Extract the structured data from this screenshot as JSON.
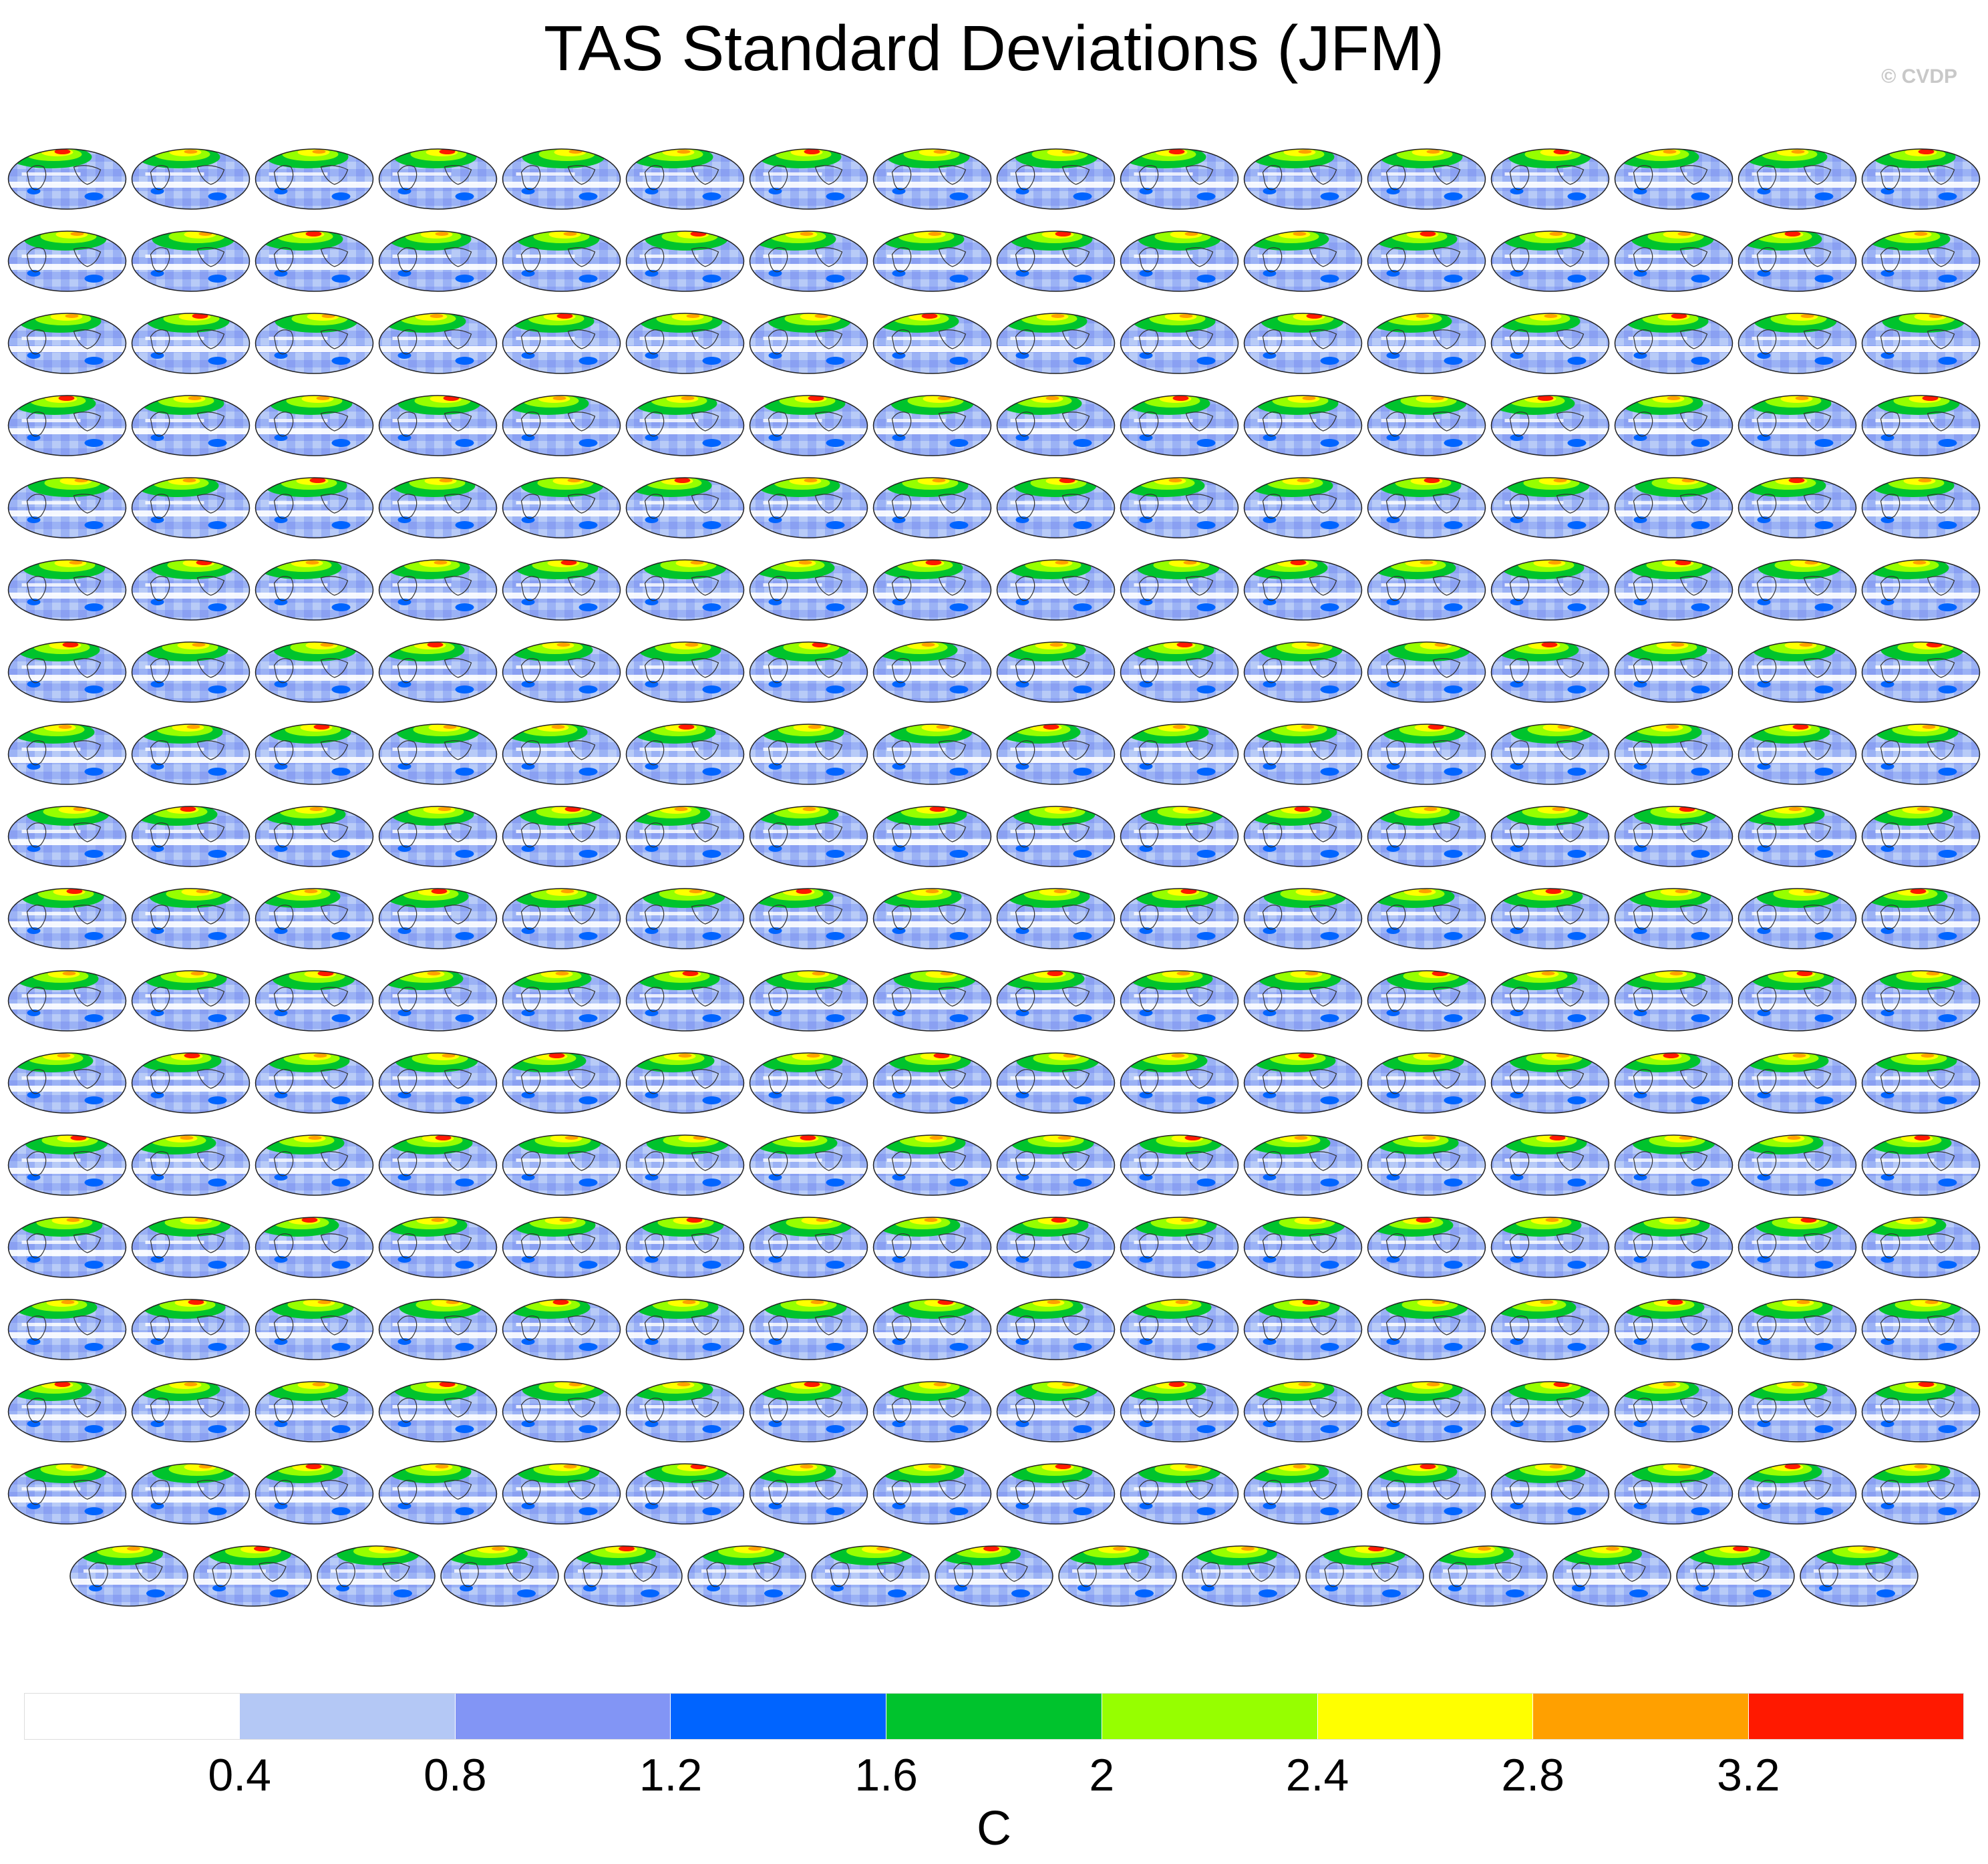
{
  "title": "TAS Standard Deviations (JFM)",
  "copyright": "© CVDP",
  "chart_data": {
    "type": "contour-map-grid",
    "title": "TAS Standard Deviations (JFM)",
    "panel_layout": {
      "rows": 18,
      "panels_per_row": [
        16,
        16,
        16,
        16,
        16,
        16,
        16,
        16,
        16,
        16,
        16,
        16,
        16,
        16,
        16,
        16,
        16,
        15
      ]
    },
    "panel_count": 287,
    "colorbar": {
      "label": "C",
      "ticks": [
        "0.4",
        "0.8",
        "1.2",
        "1.6",
        "2",
        "2.4",
        "2.8",
        "3.2"
      ],
      "colors": [
        "#ffffff",
        "#b4c8f5",
        "#8295f5",
        "#0064ff",
        "#00c32d",
        "#96ff00",
        "#ffff00",
        "#ffa000",
        "#ff1900"
      ]
    }
  }
}
